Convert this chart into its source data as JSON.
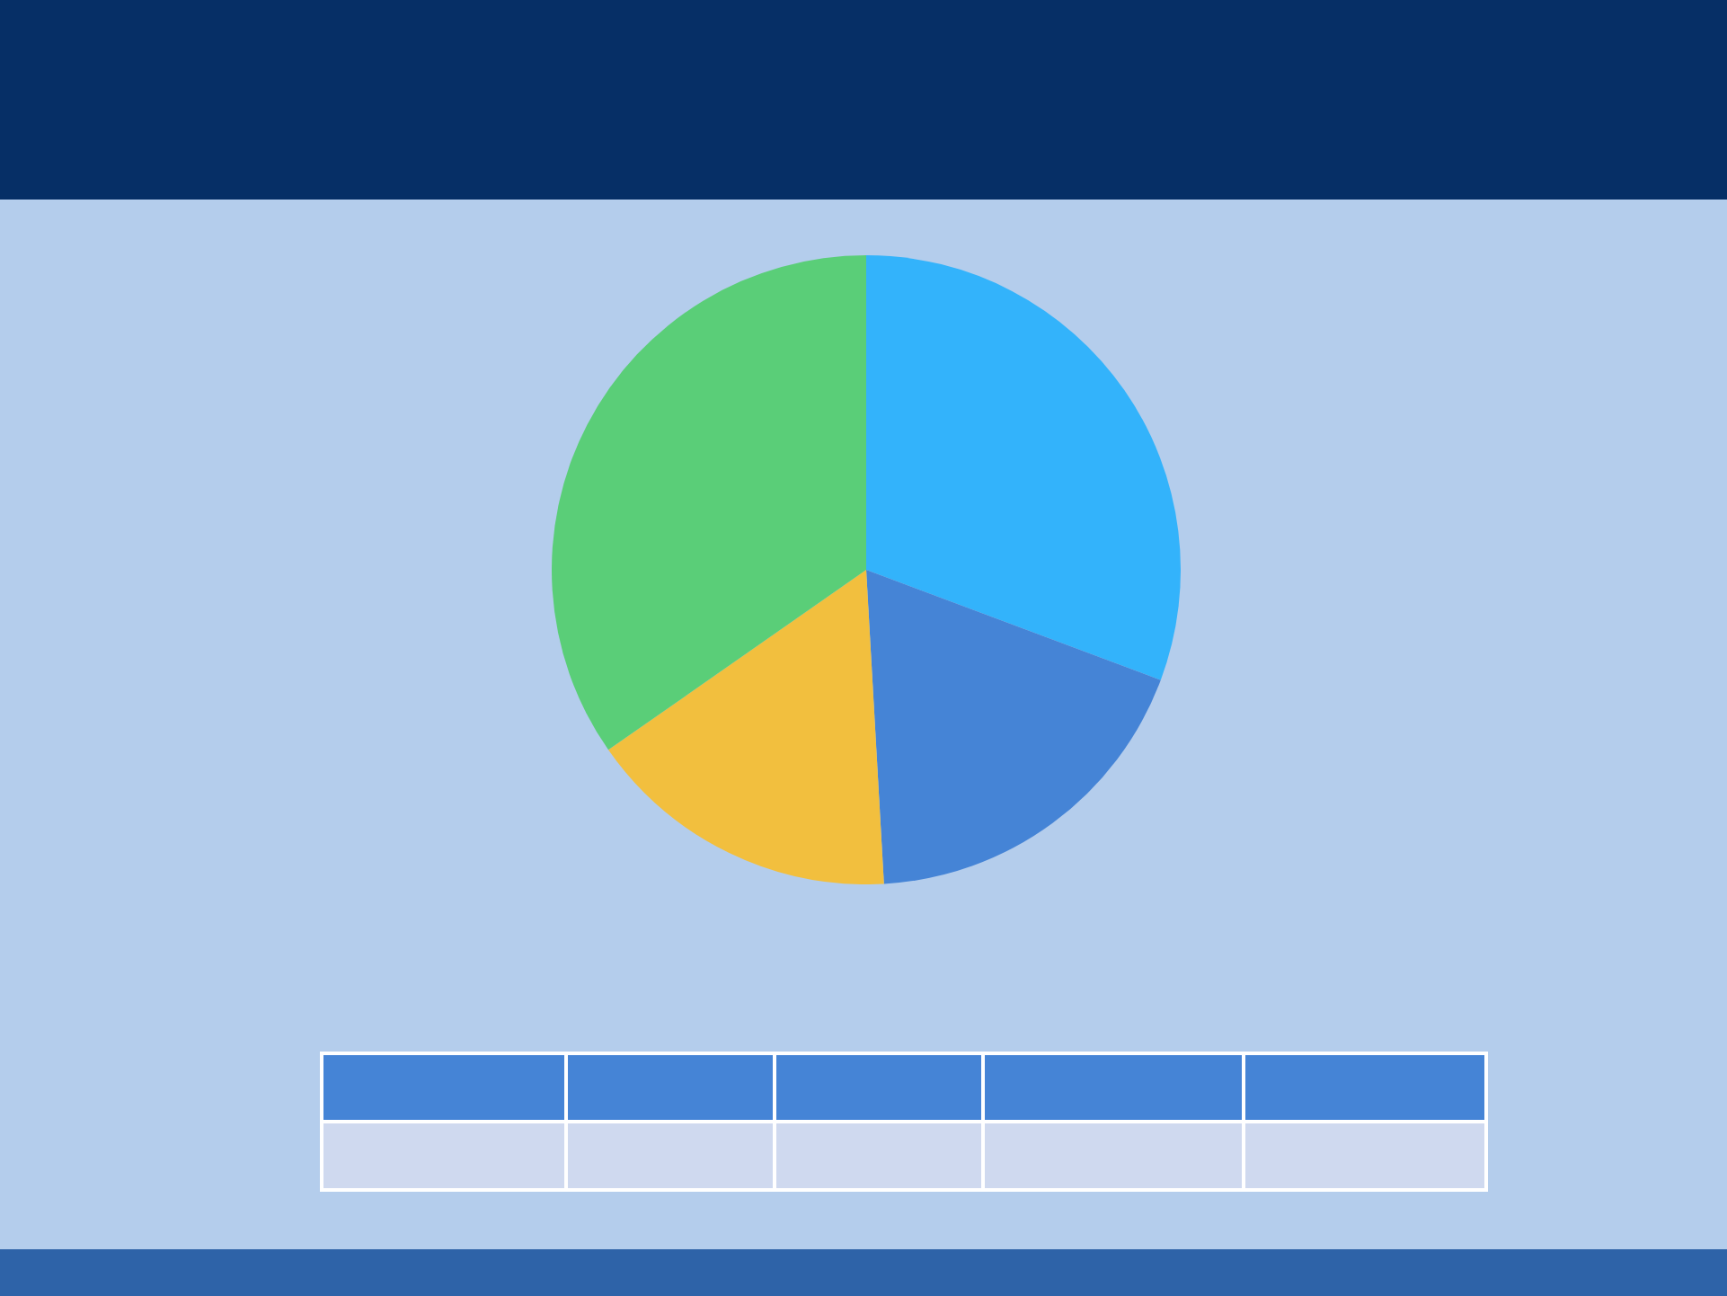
{
  "chart_data": {
    "type": "pie",
    "categories": [
      null,
      null,
      null,
      null
    ],
    "values": [
      30.7,
      18.4,
      16.2,
      34.7
    ],
    "colors": [
      "#33b3fb",
      "#4584d6",
      "#f2bf3e",
      "#5ace78"
    ],
    "legend": false
  }
}
